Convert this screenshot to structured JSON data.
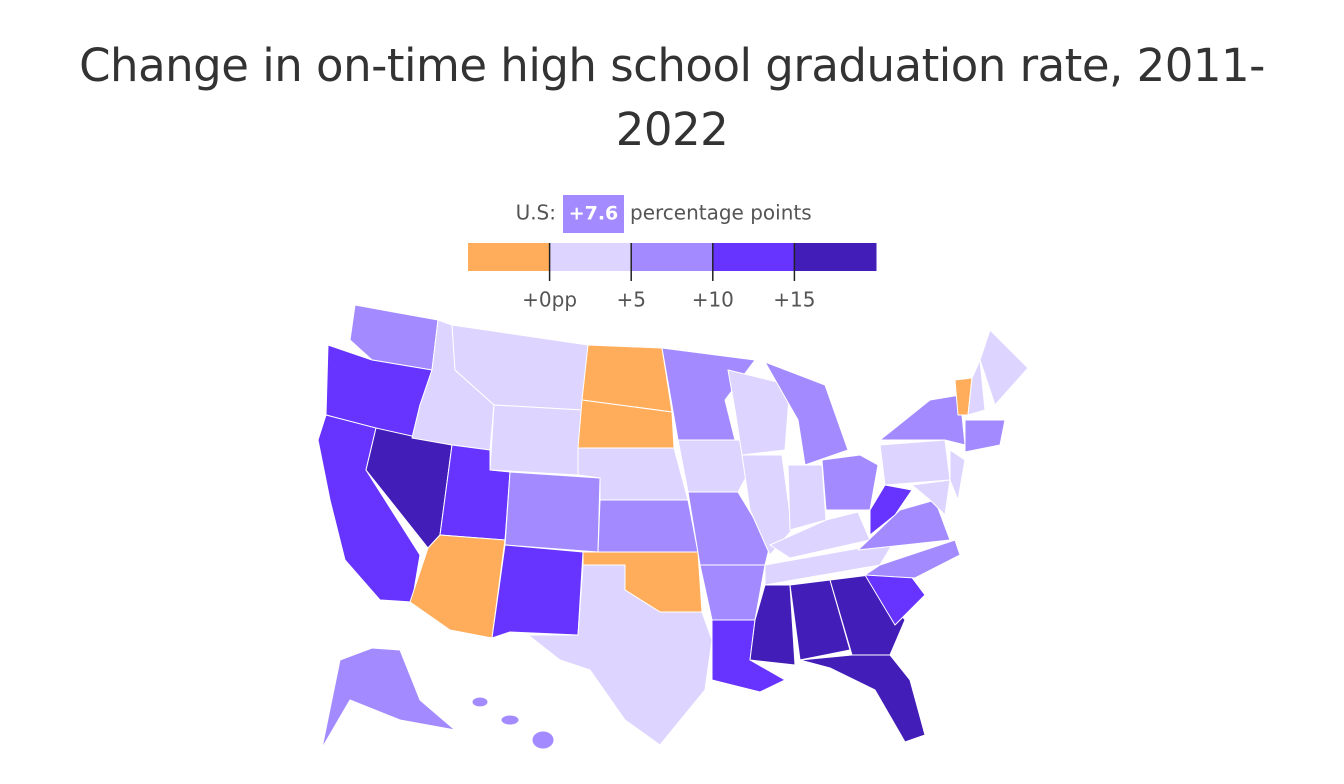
{
  "title": "Change in on-time high school graduation rate, 2011-2022",
  "us": {
    "label": "U.S:",
    "value": 7.6,
    "value_label": "+7.6",
    "unit": "percentage points"
  },
  "scale": {
    "range": [
      -5,
      20
    ],
    "colors": [
      "#ffad5b",
      "#ddd5ff",
      "#a38bff",
      "#6633ff",
      "#431db8"
    ],
    "ticks": [
      {
        "value": 0,
        "label": "+0pp"
      },
      {
        "value": 5,
        "label": "+5"
      },
      {
        "value": 10,
        "label": "+10"
      },
      {
        "value": 15,
        "label": "+15"
      }
    ]
  }
}
